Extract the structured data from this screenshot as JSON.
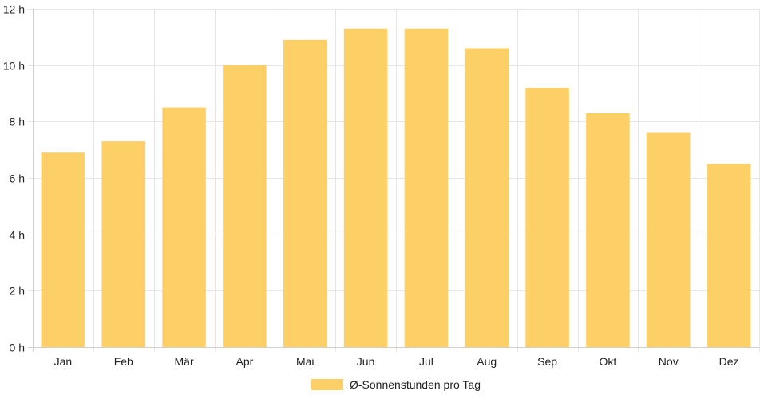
{
  "chart_data": {
    "type": "bar",
    "categories": [
      "Jan",
      "Feb",
      "Mär",
      "Apr",
      "Mai",
      "Jun",
      "Jul",
      "Aug",
      "Sep",
      "Okt",
      "Nov",
      "Dez"
    ],
    "series": [
      {
        "name": "Ø-Sonnenstunden pro Tag",
        "values": [
          6.9,
          7.3,
          8.5,
          10.0,
          10.9,
          11.3,
          11.3,
          10.6,
          9.2,
          8.3,
          7.6,
          6.5
        ],
        "color": "#fdd067"
      }
    ],
    "yticks": [
      "0 h",
      "2 h",
      "4 h",
      "6 h",
      "8 h",
      "10 h",
      "12 h"
    ],
    "ylim": [
      0,
      12
    ],
    "ytick_step": 2,
    "grid": true,
    "legend_position": "bottom-center",
    "title": "",
    "xlabel": "",
    "ylabel": ""
  }
}
